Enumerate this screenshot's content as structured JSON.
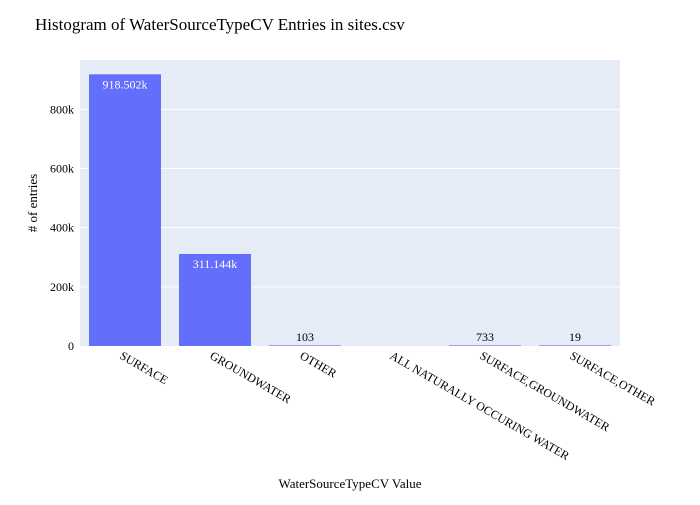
{
  "chart_data": {
    "type": "bar",
    "title": "Histogram of WaterSourceTypeCV Entries in sites.csv",
    "xlabel": "WaterSourceTypeCV Value",
    "ylabel": "# of entries",
    "categories": [
      "SURFACE",
      "GROUNDWATER",
      "OTHER",
      "ALL NATURALLY OCCURING WATER",
      "SURFACE,GROUNDWATER",
      "SURFACE,OTHER"
    ],
    "values": [
      918502,
      311144,
      103,
      0,
      733,
      19
    ],
    "data_labels": [
      "918.502k",
      "311.144k",
      "103",
      "",
      "733",
      "19"
    ],
    "y_ticks": [
      0,
      200000,
      400000,
      600000,
      800000
    ],
    "y_tick_labels": [
      "0",
      "200k",
      "400k",
      "600k",
      "800k"
    ],
    "ylim": [
      0,
      966844
    ],
    "grid": true,
    "colors": {
      "bar": "#636efa",
      "plot_bg": "#e5ecf6",
      "grid": "#ffffff",
      "text": "#2a3f5f"
    }
  }
}
